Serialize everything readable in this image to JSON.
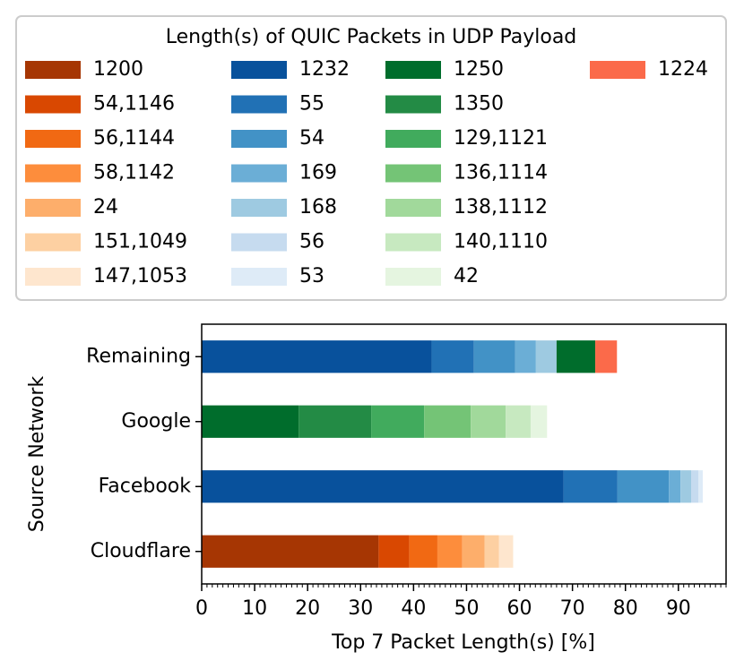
{
  "chart_data": {
    "type": "barh_stacked",
    "legend_title": "Length(s) of QUIC Packets in UDP Payload",
    "xlabel": "Top 7 Packet Length(s) [%]",
    "ylabel": "Source Network",
    "categories": [
      "Cloudflare",
      "Facebook",
      "Google",
      "Remaining"
    ],
    "xlim": [
      0,
      99
    ],
    "xticks": [
      0,
      10,
      20,
      30,
      40,
      50,
      60,
      70,
      80,
      90
    ],
    "minor_ticks": true,
    "legend_columns": 4,
    "series": [
      {
        "name": "1200",
        "color": "#a63603",
        "values": [
          33.4,
          null,
          null,
          null
        ]
      },
      {
        "name": "54,1146",
        "color": "#d94801",
        "values": [
          5.8,
          null,
          null,
          null
        ]
      },
      {
        "name": "56,1144",
        "color": "#f16913",
        "values": [
          5.3,
          null,
          null,
          null
        ]
      },
      {
        "name": "58,1142",
        "color": "#fd8d3c",
        "values": [
          4.7,
          null,
          null,
          null
        ]
      },
      {
        "name": "24",
        "color": "#fdae6b",
        "values": [
          4.2,
          null,
          null,
          null
        ]
      },
      {
        "name": "151,1049",
        "color": "#fdd0a2",
        "values": [
          2.7,
          null,
          null,
          null
        ]
      },
      {
        "name": "147,1053",
        "color": "#fee6ce",
        "values": [
          2.7,
          null,
          null,
          null
        ]
      },
      {
        "name": "1232",
        "color": "#08519c",
        "values": [
          null,
          68.3,
          null,
          43.4
        ]
      },
      {
        "name": "55",
        "color": "#2171b5",
        "values": [
          null,
          10.2,
          null,
          8.0
        ]
      },
      {
        "name": "54",
        "color": "#4292c6",
        "values": [
          null,
          9.7,
          null,
          7.8
        ]
      },
      {
        "name": "169",
        "color": "#6baed6",
        "values": [
          null,
          2.2,
          null,
          3.9
        ]
      },
      {
        "name": "168",
        "color": "#9ecae1",
        "values": [
          null,
          2.0,
          null,
          3.9
        ]
      },
      {
        "name": "56",
        "color": "#c6dbef",
        "values": [
          null,
          1.4,
          null,
          null
        ]
      },
      {
        "name": "53",
        "color": "#deebf7",
        "values": [
          null,
          0.8,
          null,
          null
        ]
      },
      {
        "name": "1250",
        "color": "#006d2c",
        "values": [
          null,
          null,
          18.3,
          7.3
        ]
      },
      {
        "name": "1350",
        "color": "#238b45",
        "values": [
          null,
          null,
          13.7,
          null
        ]
      },
      {
        "name": "129,1121",
        "color": "#41ab5d",
        "values": [
          null,
          null,
          10.0,
          null
        ]
      },
      {
        "name": "136,1114",
        "color": "#74c476",
        "values": [
          null,
          null,
          8.8,
          null
        ]
      },
      {
        "name": "138,1112",
        "color": "#a1d99b",
        "values": [
          null,
          null,
          6.6,
          null
        ]
      },
      {
        "name": "140,1110",
        "color": "#c7e9c0",
        "values": [
          null,
          null,
          4.7,
          null
        ]
      },
      {
        "name": "42",
        "color": "#e5f5e0",
        "values": [
          null,
          null,
          3.1,
          null
        ]
      },
      {
        "name": "1224",
        "color": "#fb6a4a",
        "values": [
          null,
          null,
          null,
          4.1
        ]
      }
    ]
  }
}
